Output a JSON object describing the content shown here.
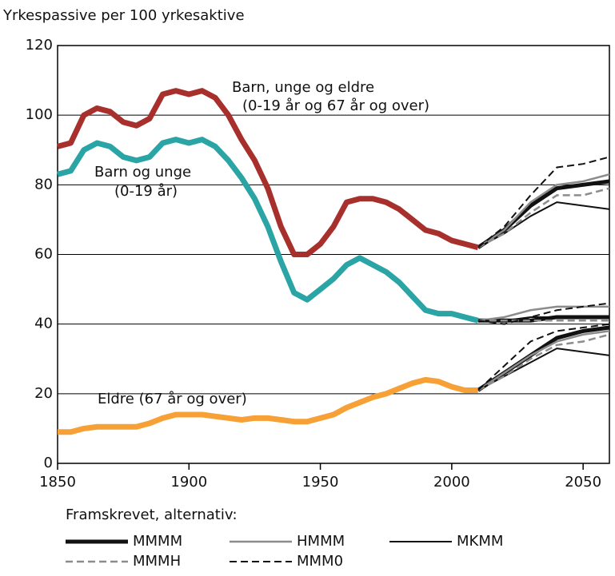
{
  "chart_data": {
    "type": "line",
    "title": "Yrkespassive per 100 yrkesaktive",
    "xlim": [
      1850,
      2060
    ],
    "ylim": [
      0,
      120
    ],
    "xticks": [
      1850,
      1900,
      1950,
      2000,
      2050
    ],
    "yticks": [
      0,
      20,
      40,
      60,
      80,
      100,
      120
    ],
    "grid": true,
    "x": [
      1850,
      1855,
      1860,
      1865,
      1870,
      1875,
      1880,
      1885,
      1890,
      1895,
      1900,
      1905,
      1910,
      1915,
      1920,
      1925,
      1930,
      1935,
      1940,
      1945,
      1950,
      1955,
      1960,
      1965,
      1970,
      1975,
      1980,
      1985,
      1990,
      1995,
      2000,
      2005,
      2010
    ],
    "series": [
      {
        "label": [
          "Barn, unge og eldre",
          "(0-19 år og 67 år og over)"
        ],
        "color": "#a8302c",
        "values": [
          91,
          92,
          100,
          102,
          101,
          98,
          97,
          99,
          106,
          107,
          106,
          107,
          105,
          100,
          93,
          87,
          79,
          68,
          60,
          60,
          63,
          68,
          75,
          76,
          76,
          75,
          73,
          70,
          67,
          66,
          64,
          63,
          62
        ]
      },
      {
        "label": [
          "Barn og unge",
          "(0-19 år)"
        ],
        "color": "#2aa4a4",
        "values": [
          83,
          84,
          90,
          92,
          91,
          88,
          87,
          88,
          92,
          93,
          92,
          93,
          91,
          87,
          82,
          76,
          68,
          58,
          49,
          47,
          50,
          53,
          57,
          59,
          57,
          55,
          52,
          48,
          44,
          43,
          43,
          42,
          41
        ]
      },
      {
        "label": [
          "Eldre (67 år og over)"
        ],
        "color": "#f7a035",
        "values": [
          9,
          9,
          10,
          10.5,
          10.5,
          10.5,
          10.5,
          11.5,
          13,
          14,
          14,
          14,
          13.5,
          13,
          12.5,
          13,
          13,
          12.5,
          12,
          12,
          13,
          14,
          16,
          17.5,
          19,
          20,
          21.5,
          23,
          24,
          23.5,
          22,
          21,
          21
        ]
      }
    ],
    "legend_title": "Framskrevet, alternativ:",
    "projection_x": [
      2010,
      2020,
      2030,
      2040,
      2050,
      2060
    ],
    "scenarios": [
      {
        "name": "MMMM",
        "color": "#111111",
        "dashed": false,
        "width": 5,
        "values": [
          [
            62,
            67,
            74,
            79,
            80,
            81
          ],
          [
            41,
            41,
            41,
            42,
            42,
            42
          ],
          [
            21,
            26,
            31,
            36,
            38,
            39
          ]
        ]
      },
      {
        "name": "HMMM",
        "color": "#8c8c8c",
        "dashed": false,
        "width": 2.5,
        "values": [
          [
            62,
            67,
            75,
            80,
            81,
            83
          ],
          [
            41,
            42,
            44,
            45,
            45,
            45
          ],
          [
            21,
            26,
            31,
            35,
            37,
            38
          ]
        ]
      },
      {
        "name": "MKMM",
        "color": "#111111",
        "dashed": false,
        "width": 2,
        "values": [
          [
            62,
            66,
            71,
            75,
            74,
            73
          ],
          [
            41,
            41,
            42,
            42,
            42,
            42
          ],
          [
            21,
            25,
            29,
            33,
            32,
            31
          ]
        ]
      },
      {
        "name": "MMMH",
        "color": "#8c8c8c",
        "dashed": true,
        "width": 2.5,
        "values": [
          [
            62,
            66,
            72,
            77,
            77,
            79
          ],
          [
            41,
            41,
            41,
            41,
            41,
            41
          ],
          [
            21,
            25,
            30,
            34,
            35,
            37
          ]
        ]
      },
      {
        "name": "MMM0",
        "color": "#111111",
        "dashed": true,
        "width": 2,
        "values": [
          [
            62,
            68,
            77,
            85,
            86,
            88
          ],
          [
            41,
            40,
            42,
            44,
            45,
            46
          ],
          [
            21,
            28,
            35,
            38,
            39,
            40
          ]
        ]
      }
    ]
  }
}
